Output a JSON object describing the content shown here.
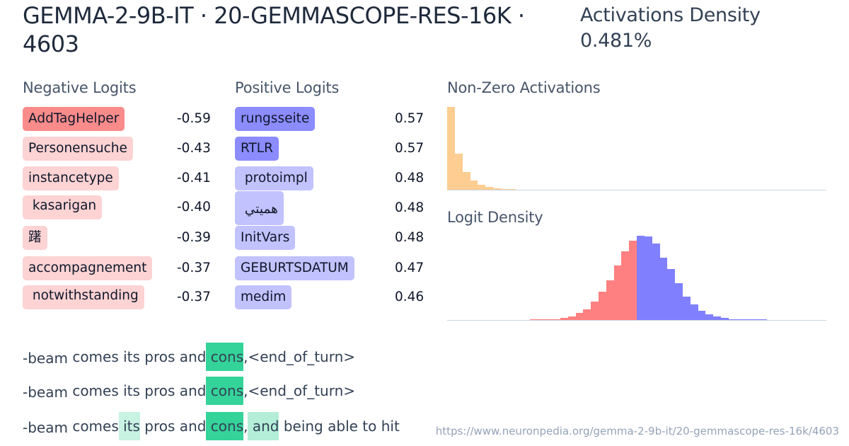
{
  "header": {
    "title": "GEMMA-2-9B-IT · 20-GEMMASCOPE-RES-16K · 4603",
    "activations_density_label": "Activations Density",
    "activations_density_value": "0.481%"
  },
  "negative_logits": {
    "title": "Negative Logits",
    "items": [
      {
        "token": "AddTagHelper",
        "value": "-0.59",
        "color": "#f98b8b"
      },
      {
        "token": "Personensuche",
        "value": "-0.43",
        "color": "#fdd3d3"
      },
      {
        "token": "instancetype",
        "value": "-0.41",
        "color": "#fdd3d3"
      },
      {
        "token": " kasarigan",
        "value": "-0.40",
        "color": "#fdd3d3"
      },
      {
        "token": "躇",
        "value": "-0.39",
        "color": "#fdd3d3"
      },
      {
        "token": "accompagnement",
        "value": "-0.37",
        "color": "#fdd3d3"
      },
      {
        "token": " notwithstanding",
        "value": "-0.37",
        "color": "#fdd3d3"
      }
    ]
  },
  "positive_logits": {
    "title": "Positive Logits",
    "items": [
      {
        "token": "rungsseite",
        "value": "0.57",
        "color": "#8c8cff"
      },
      {
        "token": "RTLR",
        "value": "0.57",
        "color": "#8c8cff"
      },
      {
        "token": " protoimpl",
        "value": "0.48",
        "color": "#c2c2ff"
      },
      {
        "token": " همیتي",
        "value": "0.48",
        "color": "#c2c2ff"
      },
      {
        "token": "InitVars",
        "value": "0.48",
        "color": "#c2c2ff"
      },
      {
        "token": "GEBURTSDATUM",
        "value": "0.47",
        "color": "#c2c2ff"
      },
      {
        "token": "medim",
        "value": "0.46",
        "color": "#c2c2ff"
      }
    ]
  },
  "non_zero_activations": {
    "title": "Non-Zero Activations",
    "color": "#fdcd91"
  },
  "logit_density": {
    "title": "Logit Density",
    "negative_color": "#ff8080",
    "positive_color": "#8080ff"
  },
  "chart_data": [
    {
      "type": "bar",
      "title": "Non-Zero Activations",
      "xlabel": "",
      "ylabel": "",
      "grid": false,
      "categories": [
        "b1",
        "b2",
        "b3",
        "b4",
        "b5",
        "b6",
        "b7",
        "b8",
        "b9"
      ],
      "values": [
        117,
        51,
        25,
        13,
        7,
        4,
        2.5,
        1.5,
        0.7
      ]
    },
    {
      "type": "bar",
      "title": "Logit Density",
      "xlabel": "",
      "ylabel": "",
      "grid": false,
      "series": [
        {
          "name": "negative",
          "values": [
            0.6,
            0.6,
            0.6,
            1.5,
            3,
            5.5,
            9.7,
            15,
            25.7,
            39.7,
            55.7,
            76.7,
            96.7,
            111.7
          ]
        },
        {
          "name": "positive",
          "values": [
            118.7,
            117.7,
            107.7,
            87.7,
            71.7,
            51.7,
            32.7,
            21.7,
            12.7,
            7.7,
            4.7,
            2.7,
            1,
            0.6,
            0.6,
            0.6,
            0.6
          ]
        }
      ]
    }
  ],
  "examples": [
    {
      "tokens": [
        {
          "t": "-beam",
          "bg": ""
        },
        {
          "t": " comes",
          "bg": ""
        },
        {
          "t": " its",
          "bg": ""
        },
        {
          "t": " pros",
          "bg": ""
        },
        {
          "t": " and",
          "bg": ""
        },
        {
          "t": " cons",
          "bg": "#34d399"
        },
        {
          "t": ",",
          "bg": ""
        },
        {
          "t": "<end_of_turn>",
          "bg": ""
        }
      ]
    },
    {
      "tokens": [
        {
          "t": "-beam",
          "bg": ""
        },
        {
          "t": " comes",
          "bg": ""
        },
        {
          "t": " its",
          "bg": ""
        },
        {
          "t": " pros",
          "bg": ""
        },
        {
          "t": " and",
          "bg": ""
        },
        {
          "t": " cons",
          "bg": "#34d399"
        },
        {
          "t": ",",
          "bg": ""
        },
        {
          "t": "<end_of_turn>",
          "bg": ""
        }
      ]
    },
    {
      "tokens": [
        {
          "t": "-beam",
          "bg": ""
        },
        {
          "t": " comes",
          "bg": ""
        },
        {
          "t": " its",
          "bg": "#c8f2e2"
        },
        {
          "t": " pros",
          "bg": ""
        },
        {
          "t": " and",
          "bg": ""
        },
        {
          "t": " cons",
          "bg": "#34d399"
        },
        {
          "t": ",",
          "bg": ""
        },
        {
          "t": " and",
          "bg": "#b4eed8"
        },
        {
          "t": " being",
          "bg": ""
        },
        {
          "t": " able",
          "bg": ""
        },
        {
          "t": " to",
          "bg": ""
        },
        {
          "t": " hit",
          "bg": ""
        }
      ]
    }
  ],
  "footer": {
    "url": "https://www.neuronpedia.org/gemma-2-9b-it/20-gemmascope-res-16k/4603"
  }
}
